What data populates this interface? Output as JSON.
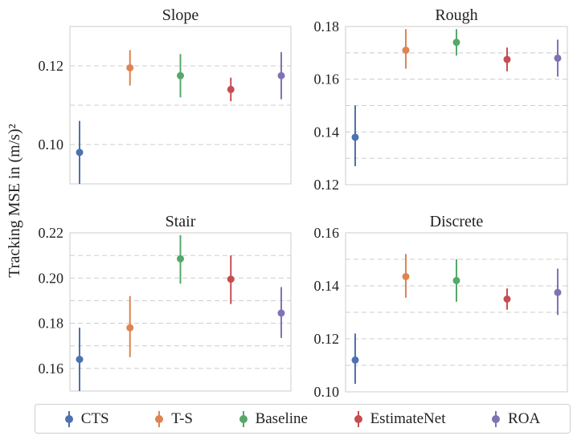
{
  "ylabel": "Tracking MSE in (m/s)²",
  "colors": {
    "CTS": "#4c72b0",
    "T-S": "#dd8452",
    "Baseline": "#55a868",
    "EstimateNet": "#c44e52",
    "ROA": "#8172b3"
  },
  "legend": {
    "placement": "bottom",
    "entries": [
      "CTS",
      "T-S",
      "Baseline",
      "EstimateNet",
      "ROA"
    ]
  },
  "chart_data": [
    {
      "type": "scatter",
      "title": "Slope",
      "ylim": [
        0.09,
        0.13
      ],
      "yticks": [
        0.1,
        0.12
      ],
      "ytick_labels": [
        "0.10",
        "0.12"
      ],
      "grid": true,
      "series": [
        {
          "name": "CTS",
          "mean": 0.098,
          "low": 0.09,
          "high": 0.106
        },
        {
          "name": "T-S",
          "mean": 0.1195,
          "low": 0.115,
          "high": 0.124
        },
        {
          "name": "Baseline",
          "mean": 0.1175,
          "low": 0.112,
          "high": 0.123
        },
        {
          "name": "EstimateNet",
          "mean": 0.114,
          "low": 0.111,
          "high": 0.117
        },
        {
          "name": "ROA",
          "mean": 0.1175,
          "low": 0.1115,
          "high": 0.1235
        }
      ]
    },
    {
      "type": "scatter",
      "title": "Rough",
      "ylim": [
        0.12,
        0.18
      ],
      "yticks": [
        0.12,
        0.14,
        0.16,
        0.18
      ],
      "ytick_labels": [
        "0.12",
        "0.14",
        "0.16",
        "0.18"
      ],
      "grid": true,
      "series": [
        {
          "name": "CTS",
          "mean": 0.138,
          "low": 0.127,
          "high": 0.15
        },
        {
          "name": "T-S",
          "mean": 0.171,
          "low": 0.164,
          "high": 0.179
        },
        {
          "name": "Baseline",
          "mean": 0.174,
          "low": 0.169,
          "high": 0.179
        },
        {
          "name": "EstimateNet",
          "mean": 0.1675,
          "low": 0.163,
          "high": 0.172
        },
        {
          "name": "ROA",
          "mean": 0.168,
          "low": 0.161,
          "high": 0.175
        }
      ]
    },
    {
      "type": "scatter",
      "title": "Stair",
      "ylim": [
        0.15,
        0.22
      ],
      "yticks": [
        0.16,
        0.18,
        0.2,
        0.22
      ],
      "ytick_labels": [
        "0.16",
        "0.18",
        "0.20",
        "0.22"
      ],
      "grid": true,
      "series": [
        {
          "name": "CTS",
          "mean": 0.164,
          "low": 0.15,
          "high": 0.178
        },
        {
          "name": "T-S",
          "mean": 0.178,
          "low": 0.165,
          "high": 0.192
        },
        {
          "name": "Baseline",
          "mean": 0.2085,
          "low": 0.1975,
          "high": 0.219
        },
        {
          "name": "EstimateNet",
          "mean": 0.1995,
          "low": 0.1885,
          "high": 0.21
        },
        {
          "name": "ROA",
          "mean": 0.1845,
          "low": 0.1735,
          "high": 0.196
        }
      ]
    },
    {
      "type": "scatter",
      "title": "Discrete",
      "ylim": [
        0.1,
        0.16
      ],
      "yticks": [
        0.1,
        0.12,
        0.14,
        0.16
      ],
      "ytick_labels": [
        "0.10",
        "0.12",
        "0.14",
        "0.16"
      ],
      "grid": true,
      "series": [
        {
          "name": "CTS",
          "mean": 0.112,
          "low": 0.103,
          "high": 0.122
        },
        {
          "name": "T-S",
          "mean": 0.1435,
          "low": 0.1355,
          "high": 0.152
        },
        {
          "name": "Baseline",
          "mean": 0.142,
          "low": 0.134,
          "high": 0.15
        },
        {
          "name": "EstimateNet",
          "mean": 0.135,
          "low": 0.131,
          "high": 0.139
        },
        {
          "name": "ROA",
          "mean": 0.1375,
          "low": 0.129,
          "high": 0.1465
        }
      ]
    }
  ]
}
